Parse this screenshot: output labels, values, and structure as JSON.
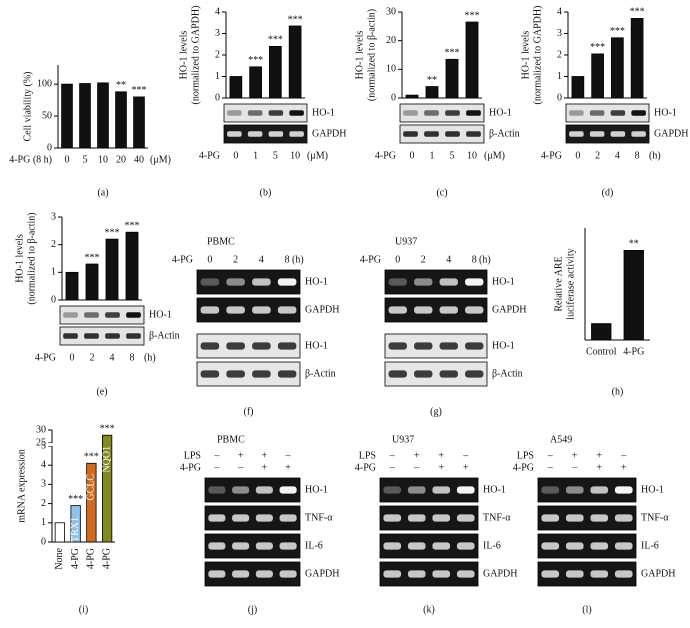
{
  "chart_data": [
    {
      "type": "bar",
      "panel": "(a)",
      "ylabel": [
        "Cell viability (%)"
      ],
      "xprefix": "4-PG (8 h)",
      "xunit": "(μM)",
      "categories": [
        "0",
        "5",
        "10",
        "20",
        "40"
      ],
      "values": [
        100,
        101,
        102,
        88,
        80
      ],
      "annotations": [
        null,
        null,
        null,
        "**",
        "***"
      ],
      "ylim": [
        0,
        130
      ],
      "yticks": [
        0,
        50,
        100
      ],
      "color": "#111111"
    },
    {
      "type": "bar",
      "panel": "(b)",
      "ylabel": [
        "HO-1 levels",
        "(normalized to GAPDH)"
      ],
      "xprefix": "4-PG",
      "xunit": "(μM)",
      "categories": [
        "0",
        "1",
        "5",
        "10"
      ],
      "values": [
        1,
        1.45,
        2.4,
        3.35
      ],
      "annotations": [
        null,
        "***",
        "***",
        "***"
      ],
      "ylim": [
        0,
        4
      ],
      "yticks": [
        0,
        1,
        2,
        3,
        4
      ],
      "color": "#111111",
      "blot_rows": [
        "HO-1",
        "GAPDH"
      ]
    },
    {
      "type": "bar",
      "panel": "(c)",
      "ylabel": [
        "HO-1 levels",
        "(normalized to β-actin)"
      ],
      "xprefix": "4-PG",
      "xunit": "(μM)",
      "categories": [
        "0",
        "1",
        "5",
        "10"
      ],
      "values": [
        1,
        4,
        13.5,
        26.5
      ],
      "annotations": [
        null,
        "**",
        "***",
        "***"
      ],
      "ylim": [
        0,
        30
      ],
      "yticks": [
        0,
        10,
        20,
        30
      ],
      "color": "#111111",
      "blot_rows": [
        "HO-1",
        "β-Actin"
      ]
    },
    {
      "type": "bar",
      "panel": "(d)",
      "ylabel": [
        "HO-1 levels",
        "(normalized to GAPDH)"
      ],
      "xprefix": "4-PG",
      "xunit": "(h)",
      "categories": [
        "0",
        "2",
        "4",
        "8"
      ],
      "values": [
        1,
        2.05,
        2.8,
        3.7
      ],
      "annotations": [
        null,
        "***",
        "***",
        "***"
      ],
      "ylim": [
        0,
        4
      ],
      "yticks": [
        0,
        1,
        2,
        3,
        4
      ],
      "color": "#111111",
      "blot_rows": [
        "HO-1",
        "GAPDH"
      ]
    },
    {
      "type": "bar",
      "panel": "(e)",
      "ylabel": [
        "HO-1 levels",
        "(normalized to β-actin)"
      ],
      "xprefix": "4-PG",
      "xunit": "(h)",
      "categories": [
        "0",
        "2",
        "4",
        "8"
      ],
      "values": [
        1,
        1.3,
        2.2,
        2.45
      ],
      "annotations": [
        null,
        "***",
        "***",
        "***"
      ],
      "ylim": [
        0,
        3
      ],
      "yticks": [
        0,
        1,
        2,
        3
      ],
      "color": "#111111",
      "blot_rows": [
        "HO-1",
        "β-Actin"
      ]
    },
    {
      "type": "bar",
      "panel": "(h)",
      "ylabel": [
        "Relative ARE",
        "luciferase activity"
      ],
      "categories": [
        "Control",
        "4-PG"
      ],
      "values": [
        0.95,
        5.2
      ],
      "annotations": [
        null,
        "**"
      ],
      "ylim": [
        0,
        6.5
      ],
      "color": "#111111"
    },
    {
      "type": "bar",
      "panel": "(i)",
      "ylabel": [
        "mRNA expression"
      ],
      "categories": [
        "None",
        "4-PG",
        "4-PG",
        "4-PG"
      ],
      "bar_labels": [
        null,
        "TRX1",
        "GCLC",
        "NQO1"
      ],
      "values": [
        1,
        1.9,
        4.1,
        28
      ],
      "annotations": [
        null,
        "***",
        "***",
        "***"
      ],
      "colors": [
        "#ffffff",
        "#8ec3e6",
        "#d2691e",
        "#808a1e"
      ],
      "ylim": [
        0,
        30
      ],
      "ybreak": [
        5,
        25
      ],
      "yticks": [
        0,
        1,
        2,
        3,
        4,
        5,
        25,
        30
      ]
    }
  ],
  "gels": [
    {
      "panel": "(f)",
      "title": "PBMC",
      "treatment": "4-PG",
      "lanes": [
        "0",
        "2",
        "4",
        "8"
      ],
      "unit": "(h)",
      "rows": [
        "HO-1",
        "GAPDH",
        "HO-1",
        "β-Actin"
      ]
    },
    {
      "panel": "(g)",
      "title": "U937",
      "treatment": "4-PG",
      "lanes": [
        "0",
        "2",
        "4",
        "8"
      ],
      "unit": "(h)",
      "rows": [
        "HO-1",
        "GAPDH",
        "HO-1",
        "β-Actin"
      ]
    },
    {
      "panel": "(j)",
      "title": "PBMC",
      "treatments": [
        {
          "name": "LPS",
          "signs": [
            "–",
            "+",
            "+",
            "–"
          ]
        },
        {
          "name": "4-PG",
          "signs": [
            "–",
            "–",
            "+",
            "+"
          ]
        }
      ],
      "rows": [
        "HO-1",
        "TNF-α",
        "IL-6",
        "GAPDH"
      ]
    },
    {
      "panel": "(k)",
      "title": "U937",
      "treatments": [
        {
          "name": "LPS",
          "signs": [
            "–",
            "+",
            "+",
            "–"
          ]
        },
        {
          "name": "4-PG",
          "signs": [
            "–",
            "–",
            "+",
            "+"
          ]
        }
      ],
      "rows": [
        "HO-1",
        "TNF-α",
        "IL-6",
        "GAPDH"
      ]
    },
    {
      "panel": "(l)",
      "title": "A549",
      "treatments": [
        {
          "name": "LPS",
          "signs": [
            "–",
            "+",
            "+",
            "–"
          ]
        },
        {
          "name": "4-PG",
          "signs": [
            "–",
            "–",
            "+",
            "+"
          ]
        }
      ],
      "rows": [
        "HO-1",
        "TNF-α",
        "IL-6",
        "GAPDH"
      ]
    }
  ]
}
